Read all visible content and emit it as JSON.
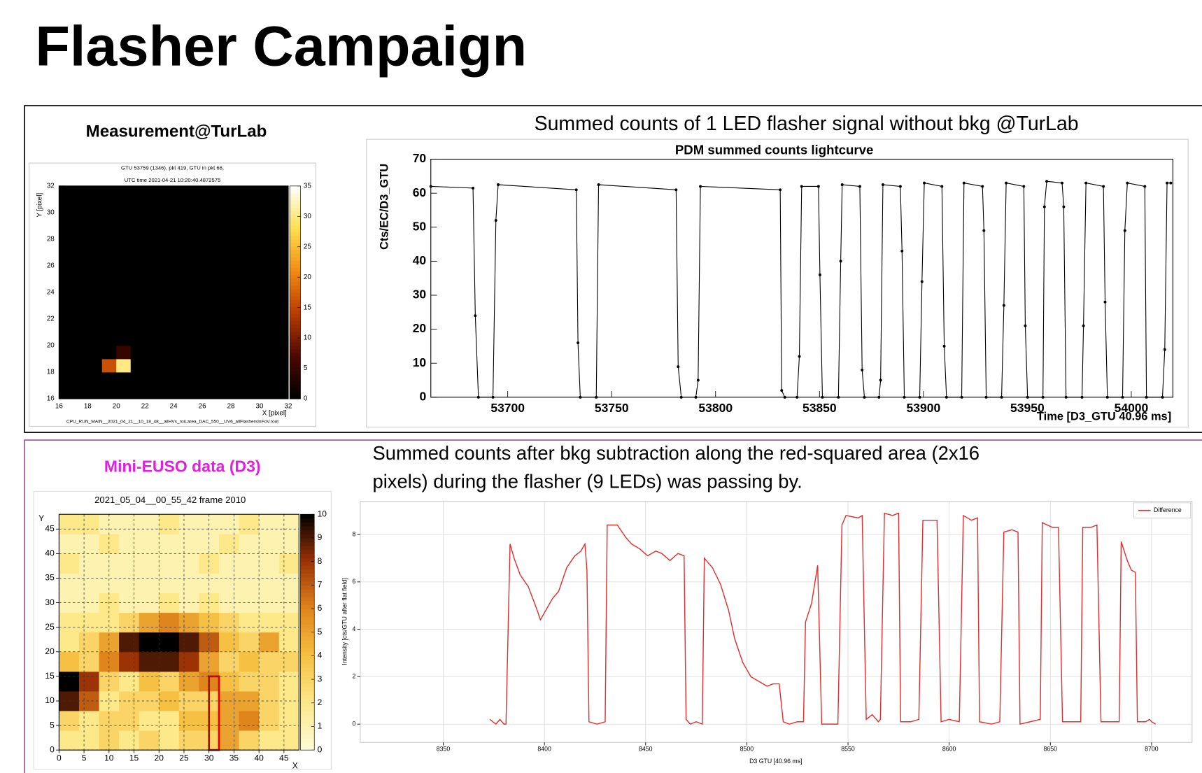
{
  "title": "Flasher Campaign",
  "chart_data": [
    {
      "type": "heatmap",
      "heading": "Measurement@TurLab",
      "title_lines": [
        "GTU 53759 (1346), pkt 419, GTU in pkt 66,",
        "UTC time 2021-04-21 10:20:40.4872575"
      ],
      "xlabel": "X [pixel]",
      "ylabel": "Y [pixel]",
      "footer": "CPU_RUN_MAIN__2021_04_21__10_18_48__allHVs_roiLarea_DAC_550__UV6_allFlashersInFoV.root",
      "xlim": [
        16,
        32
      ],
      "ylim": [
        16,
        32
      ],
      "zlim": [
        0,
        35
      ],
      "xticks": [
        16,
        18,
        20,
        22,
        24,
        26,
        28,
        30,
        32
      ],
      "yticks": [
        16,
        18,
        20,
        22,
        24,
        26,
        28,
        30,
        32
      ],
      "zticks": [
        0,
        5,
        10,
        15,
        20,
        25,
        30,
        35
      ],
      "colorscale": [
        "#000000",
        "#4a0800",
        "#b83a00",
        "#f08a10",
        "#ffe050",
        "#ffffff"
      ],
      "xbins": [
        16,
        17,
        18,
        19,
        20,
        21,
        22,
        23,
        24,
        25,
        26,
        27,
        28,
        29,
        30,
        31,
        32
      ],
      "ybins": [
        16,
        17,
        18,
        19,
        20,
        21,
        22,
        23,
        24,
        25,
        26,
        27,
        28,
        29,
        30,
        31,
        32
      ],
      "z": [
        [
          0,
          0,
          0,
          0,
          0,
          0,
          0,
          0,
          0,
          0,
          0,
          0,
          0,
          0,
          0,
          0
        ],
        [
          0,
          0,
          0,
          0,
          0,
          0,
          0,
          0,
          0,
          0,
          0,
          0,
          0,
          0,
          0,
          0
        ],
        [
          0,
          0,
          0,
          16,
          30,
          0,
          0,
          0,
          0,
          0,
          0,
          0,
          0,
          0,
          0,
          0
        ],
        [
          0,
          0,
          0,
          0,
          5,
          0,
          0,
          0,
          0,
          0,
          0,
          0,
          0,
          0,
          0,
          0
        ],
        [
          0,
          0,
          0,
          0,
          0,
          0,
          0,
          0,
          0,
          0,
          0,
          0,
          0,
          0,
          0,
          0
        ],
        [
          0,
          0,
          0,
          0,
          0,
          0,
          0,
          0,
          0,
          0,
          0,
          0,
          0,
          0,
          0,
          0
        ],
        [
          0,
          0,
          0,
          0,
          0,
          0,
          0,
          0,
          0,
          0,
          0,
          0,
          0,
          0,
          0,
          0
        ],
        [
          0,
          0,
          0,
          0,
          0,
          0,
          0,
          0,
          0,
          0,
          0,
          0,
          0,
          0,
          0,
          0
        ],
        [
          0,
          0,
          0,
          0,
          0,
          0,
          0,
          0,
          0,
          0,
          0,
          0,
          0,
          0,
          0,
          0
        ],
        [
          0,
          0,
          0,
          0,
          0,
          0,
          0,
          0,
          0,
          0,
          0,
          0,
          0,
          0,
          0,
          0
        ],
        [
          0,
          0,
          0,
          0,
          0,
          0,
          0,
          0,
          0,
          0,
          0,
          0,
          0,
          0,
          0,
          0
        ],
        [
          0,
          0,
          0,
          0,
          0,
          0,
          0,
          0,
          0,
          0,
          0,
          0,
          0,
          0,
          0,
          0
        ],
        [
          0,
          0,
          0,
          0,
          0,
          0,
          0,
          0,
          0,
          0,
          0,
          0,
          0,
          0,
          0,
          0
        ],
        [
          0,
          0,
          0,
          0,
          0,
          0,
          0,
          0,
          0,
          0,
          0,
          0,
          0,
          0,
          0,
          0
        ],
        [
          0,
          0,
          0,
          0,
          0,
          0,
          0,
          0,
          0,
          0,
          0,
          0,
          0,
          0,
          0,
          0
        ],
        [
          0,
          0,
          0,
          0,
          0,
          0,
          0,
          0,
          0,
          0,
          0,
          0,
          0,
          0,
          0,
          0
        ]
      ]
    },
    {
      "type": "line",
      "heading": "Summed counts of 1 LED flasher signal without bkg @TurLab",
      "title": "PDM summed counts lightcurve",
      "xlabel": "Time [D3_GTU 40.96 ms]",
      "ylabel": "Cts/EC/D3_GTU",
      "xlim": [
        53663,
        54020
      ],
      "ylim": [
        0,
        70
      ],
      "xticks": [
        53700,
        53750,
        53800,
        53850,
        53900,
        53950,
        54000
      ],
      "yticks": [
        0,
        10,
        20,
        30,
        40,
        50,
        60,
        70
      ],
      "markers": true,
      "color": "#000000",
      "x": [
        53663,
        53683.3,
        53684.4,
        53685.9,
        53692.9,
        53694.3,
        53695.4,
        53733,
        53733.8,
        53734.9,
        53742.6,
        53743.7,
        53781,
        53782,
        53783.5,
        53790.5,
        53791.6,
        53792.7,
        53831.1,
        53831.8,
        53833.3,
        53839.2,
        53840.3,
        53841.4,
        53849.5,
        53850.2,
        53851.4,
        53859.1,
        53860.2,
        53860.9,
        53869.4,
        53870.5,
        53871.6,
        53878.6,
        53879.4,
        53880.5,
        53888.9,
        53889.7,
        53890.8,
        53898.2,
        53899.3,
        53900.4,
        53908.9,
        53910,
        53911.1,
        53918.4,
        53919.5,
        53928.4,
        53929.1,
        53930.2,
        53937.6,
        53938.7,
        53939.8,
        53948.3,
        53949,
        53950.1,
        53957.5,
        53958.2,
        53959.3,
        53966.7,
        53967.5,
        53968.6,
        53976.3,
        53977,
        53978.2,
        53986.6,
        53987.4,
        53988.5,
        53995.8,
        53996.9,
        53998.1,
        54006.5,
        54007.3,
        54015,
        54016.1,
        54017.2,
        54019
      ],
      "values": [
        62,
        61.5,
        24,
        0,
        0,
        52,
        62.5,
        61,
        16,
        0,
        0,
        62.5,
        61,
        9,
        0,
        0,
        5,
        62,
        61,
        2,
        0,
        0,
        12,
        62,
        62,
        36,
        0,
        0,
        40,
        62.5,
        62,
        8,
        0,
        0,
        5,
        62.5,
        62,
        43,
        0,
        0,
        34,
        63,
        62,
        15,
        0,
        0,
        63,
        62,
        49,
        0,
        0,
        27,
        63,
        62,
        21,
        0,
        0,
        56,
        63.5,
        63,
        56,
        0,
        0,
        21,
        63,
        62,
        28,
        0,
        0,
        49,
        63,
        62,
        0,
        0,
        14,
        63,
        63
      ]
    },
    {
      "type": "heatmap",
      "heading": "Mini-EUSO data (D3)",
      "title": "2021_05_04__00_55_42 frame 2010",
      "xlabel": "X",
      "ylabel": "Y",
      "grid": "dashed",
      "xlim": [
        0,
        48
      ],
      "ylim": [
        0,
        48
      ],
      "zlim": [
        0,
        10
      ],
      "xticks": [
        0,
        5,
        10,
        15,
        20,
        25,
        30,
        35,
        40,
        45
      ],
      "yticks": [
        0,
        5,
        10,
        15,
        20,
        25,
        30,
        35,
        40,
        45
      ],
      "zticks": [
        0,
        1,
        2,
        3,
        4,
        5,
        6,
        7,
        8,
        9,
        10
      ],
      "colorscale": [
        "#fffbd8",
        "#fde88a",
        "#f6c043",
        "#e0851c",
        "#9c3306",
        "#000000"
      ],
      "xbins": [
        0,
        4,
        8,
        12,
        16,
        20,
        24,
        28,
        32,
        36,
        40,
        44,
        48
      ],
      "ybins": [
        0,
        4,
        8,
        12,
        16,
        20,
        24,
        28,
        32,
        36,
        40,
        44,
        48
      ],
      "z": [
        [
          2,
          2,
          3,
          2,
          3,
          2,
          3,
          3,
          5,
          3,
          2,
          2
        ],
        [
          3,
          2,
          3,
          3,
          2,
          2,
          4,
          4,
          5,
          6,
          3,
          2
        ],
        [
          9,
          7,
          2,
          3,
          3,
          4,
          3,
          3,
          5,
          5,
          3,
          2
        ],
        [
          10,
          8,
          3,
          2,
          4,
          3,
          5,
          6,
          4,
          3,
          3,
          2
        ],
        [
          4,
          3,
          6,
          8,
          9,
          9,
          8,
          5,
          3,
          4,
          3,
          3
        ],
        [
          2,
          3,
          5,
          9,
          10,
          10,
          9,
          7,
          4,
          3,
          5,
          2
        ],
        [
          2,
          2,
          2,
          3,
          5,
          6,
          5,
          4,
          3,
          2,
          2,
          2
        ],
        [
          1,
          1,
          2,
          1,
          1,
          2,
          1,
          2,
          1,
          1,
          1,
          1
        ],
        [
          1,
          1,
          1,
          1,
          1,
          1,
          1,
          1,
          1,
          1,
          1,
          1
        ],
        [
          2,
          1,
          1,
          1,
          1,
          1,
          1,
          2,
          1,
          1,
          1,
          2
        ],
        [
          1,
          1,
          2,
          1,
          1,
          1,
          1,
          1,
          2,
          1,
          1,
          1
        ],
        [
          2,
          2,
          1,
          1,
          1,
          2,
          1,
          1,
          1,
          2,
          1,
          1
        ]
      ],
      "highlight": {
        "color": "#e00000",
        "x": [
          30,
          32
        ],
        "y": [
          0,
          15
        ]
      }
    },
    {
      "type": "line",
      "heading_lines": [
        "Summed counts after bkg subtraction along the red-squared area (2x16",
        "pixels) during the flasher (9 LEDs) was passing by."
      ],
      "xlabel": "D3 GTU [40.96 ms]",
      "ylabel": "Intensity [cts/GTU after flat field]",
      "grid": "solid",
      "legend": "top-right",
      "xlim": [
        8309,
        8720
      ],
      "ylim": [
        -0.77,
        9.4
      ],
      "xticks": [
        8350,
        8400,
        8450,
        8500,
        8550,
        8600,
        8650,
        8700
      ],
      "yticks": [
        0,
        2,
        4,
        6,
        8
      ],
      "x": [
        8373,
        8376,
        8378,
        8380,
        8381,
        8383,
        8385,
        8388,
        8392,
        8396,
        8398,
        8400,
        8404,
        8407,
        8411,
        8415,
        8418,
        8420,
        8421,
        8422,
        8426,
        8430,
        8431,
        8436,
        8440,
        8443,
        8447,
        8451,
        8455,
        8458,
        8462,
        8466,
        8469,
        8470,
        8472,
        8475,
        8478,
        8479,
        8483,
        8487,
        8491,
        8494,
        8498,
        8502,
        8506,
        8510,
        8513,
        8516,
        8518,
        8521,
        8525,
        8528,
        8529,
        8532,
        8535,
        8537,
        8542,
        8545,
        8547,
        8549,
        8555,
        8557,
        8559,
        8562,
        8565,
        8566,
        8568,
        8572,
        8575,
        8576,
        8581,
        8585,
        8587,
        8591,
        8594,
        8596,
        8600,
        8605,
        8607,
        8611,
        8614,
        8615,
        8621,
        8625,
        8627,
        8631,
        8634,
        8635,
        8640,
        8645,
        8646,
        8651,
        8654,
        8656,
        8660,
        8665,
        8666,
        8670,
        8673,
        8675,
        8680,
        8684,
        8685,
        8688,
        8690,
        8692,
        8693,
        8697,
        8699,
        8700,
        8702
      ],
      "series": [
        {
          "name": "Difference",
          "color": "#e03030",
          "values": [
            0.2,
            0,
            0.2,
            0,
            0,
            7.6,
            7,
            6.3,
            5.8,
            4.9,
            4.4,
            4.7,
            5.3,
            5.6,
            6.6,
            7.1,
            7.3,
            7.6,
            6.5,
            0.1,
            0,
            0.1,
            8.4,
            8.4,
            7.9,
            7.6,
            7.4,
            7.1,
            7.3,
            7.2,
            6.9,
            7.2,
            7.1,
            0.2,
            0,
            0.1,
            0,
            7,
            6.6,
            5.9,
            4.8,
            3.6,
            2.6,
            2,
            1.8,
            1.6,
            1.7,
            1.7,
            0.1,
            0,
            0.1,
            0.1,
            4.3,
            5.1,
            6.7,
            0,
            0,
            0,
            8.4,
            8.8,
            8.7,
            8.8,
            0.2,
            0.4,
            0.1,
            0.2,
            8.9,
            8.8,
            8.9,
            0.1,
            0.1,
            0.2,
            8.6,
            8.6,
            8.6,
            0.1,
            0.2,
            0.1,
            8.8,
            8.6,
            8.7,
            0.1,
            0,
            0.1,
            8.1,
            8.2,
            8.1,
            0,
            0.1,
            0.2,
            8.5,
            8.3,
            8.3,
            0.1,
            0.1,
            0.1,
            8.3,
            8.3,
            8.4,
            0.1,
            0.1,
            0.1,
            7.7,
            6.9,
            6.5,
            6.4,
            0.1,
            0.1,
            0.2,
            0.1,
            0
          ]
        }
      ]
    }
  ]
}
